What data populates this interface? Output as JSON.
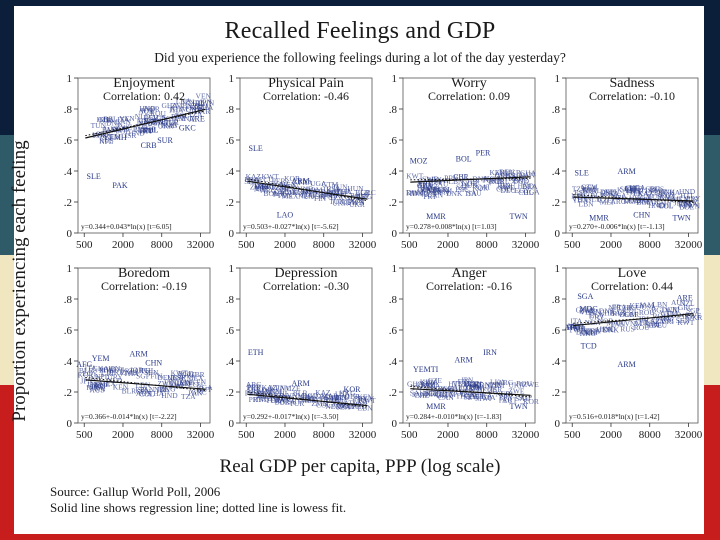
{
  "colors": {
    "stripe_top": "#0b1f3a",
    "stripe_teal": "#2f5a68",
    "stripe_cream": "#f0e6c0",
    "stripe_red": "#c81d1d",
    "text": "#1a1a1a",
    "label_ink": "#2a3a8a"
  },
  "figure": {
    "title": "Recalled Feelings and GDP",
    "subtitle": "Did you experience the following feelings during a lot of the day yesterday?",
    "ylabel": "Proportion experiencing each feeling",
    "xlabel": "Real GDP per capita, PPP (log scale)",
    "source_line1": "Source: Gallup World Poll, 2006",
    "source_line2": "Solid line shows regression line; dotted line is lowess fit."
  },
  "chart_data": [
    {
      "type": "scatter",
      "title": "Enjoyment",
      "correlation": "Correlation: 0.42",
      "x_ticks": [
        "500",
        "2000",
        "8000",
        "32000"
      ],
      "y_ticks": [
        "0",
        ".2",
        ".4",
        ".6",
        ".8",
        "1"
      ],
      "xlim": [
        400,
        45000
      ],
      "ylim": [
        0,
        1
      ],
      "equation": "y=0.344+0.043*ln(x) [t=6.05]",
      "regression": {
        "intercept": 0.344,
        "slope": 0.043
      },
      "labels": [
        {
          "text": "SLE",
          "x": 700,
          "y": 0.35
        },
        {
          "text": "PAK",
          "x": 1800,
          "y": 0.29
        },
        {
          "text": "CRB",
          "x": 5000,
          "y": 0.55
        },
        {
          "text": "YEMH",
          "x": 1500,
          "y": 0.6
        },
        {
          "text": "GKC",
          "x": 20000,
          "y": 0.66
        },
        {
          "text": "SUR",
          "x": 9000,
          "y": 0.58
        },
        {
          "text": "NZL",
          "x": 26000,
          "y": 0.8
        },
        {
          "text": "IRL",
          "x": 30000,
          "y": 0.82
        },
        {
          "text": "ARE",
          "x": 28000,
          "y": 0.72
        },
        {
          "text": "ZAF",
          "x": 7000,
          "y": 0.7
        }
      ],
      "cluster": {
        "x_range": [
          800,
          40000
        ],
        "y_center": 0.72,
        "y_spread": 0.08
      }
    },
    {
      "type": "scatter",
      "title": "Physical Pain",
      "correlation": "Correlation: -0.46",
      "x_ticks": [
        "500",
        "2000",
        "8000",
        "32000"
      ],
      "y_ticks": [
        "0",
        ".2",
        ".4",
        ".6",
        ".8",
        "1"
      ],
      "xlim": [
        400,
        45000
      ],
      "ylim": [
        0,
        1
      ],
      "equation": "y=0.503+-0.027*ln(x) [t=-5.62]",
      "regression": {
        "intercept": 0.503,
        "slope": -0.027
      },
      "labels": [
        {
          "text": "SLE",
          "x": 700,
          "y": 0.53
        },
        {
          "text": "ARM",
          "x": 3500,
          "y": 0.32
        },
        {
          "text": "LAO",
          "x": 2000,
          "y": 0.1
        },
        {
          "text": "TWN",
          "x": 25000,
          "y": 0.18
        }
      ],
      "cluster": {
        "x_range": [
          600,
          40000
        ],
        "y_center": 0.26,
        "y_spread": 0.06
      }
    },
    {
      "type": "scatter",
      "title": "Worry",
      "correlation": "Correlation: 0.09",
      "x_ticks": [
        "500",
        "2000",
        "8000",
        "32000"
      ],
      "y_ticks": [
        "0",
        ".2",
        ".4",
        ".6",
        ".8",
        "1"
      ],
      "xlim": [
        400,
        45000
      ],
      "ylim": [
        0,
        1
      ],
      "equation": "y=0.278+0.008*ln(x) [t=1.03]",
      "regression": {
        "intercept": 0.278,
        "slope": 0.008
      },
      "labels": [
        {
          "text": "MMR",
          "x": 1300,
          "y": 0.09
        },
        {
          "text": "TWN",
          "x": 25000,
          "y": 0.09
        },
        {
          "text": "MOZ",
          "x": 700,
          "y": 0.45
        },
        {
          "text": "BOL",
          "x": 3500,
          "y": 0.46
        },
        {
          "text": "PER",
          "x": 7000,
          "y": 0.5
        }
      ],
      "cluster": {
        "x_range": [
          600,
          40000
        ],
        "y_center": 0.3,
        "y_spread": 0.07
      }
    },
    {
      "type": "scatter",
      "title": "Sadness",
      "correlation": "Correlation: -0.10",
      "x_ticks": [
        "500",
        "2000",
        "8000",
        "32000"
      ],
      "y_ticks": [
        "0",
        ".2",
        ".4",
        ".6",
        ".8",
        "1"
      ],
      "xlim": [
        400,
        45000
      ],
      "ylim": [
        0,
        1
      ],
      "equation": "y=0.270+-0.006*ln(x) [t=-1.13]",
      "regression": {
        "intercept": 0.27,
        "slope": -0.006
      },
      "labels": [
        {
          "text": "SLE",
          "x": 700,
          "y": 0.37
        },
        {
          "text": "ARM",
          "x": 3500,
          "y": 0.38
        },
        {
          "text": "CHN",
          "x": 6000,
          "y": 0.1
        },
        {
          "text": "TWN",
          "x": 25000,
          "y": 0.08
        },
        {
          "text": "MMR",
          "x": 1300,
          "y": 0.08
        }
      ],
      "cluster": {
        "x_range": [
          600,
          40000
        ],
        "y_center": 0.22,
        "y_spread": 0.06
      }
    },
    {
      "type": "scatter",
      "title": "Boredom",
      "correlation": "Correlation: -0.19",
      "x_ticks": [
        "500",
        "2000",
        "8000",
        "32000"
      ],
      "y_ticks": [
        "0",
        ".2",
        ".4",
        ".6",
        ".8",
        "1"
      ],
      "xlim": [
        400,
        45000
      ],
      "ylim": [
        0,
        1
      ],
      "equation": "y=0.366+-0.014*ln(x) [t=-2.22]",
      "regression": {
        "intercept": 0.366,
        "slope": -0.014
      },
      "labels": [
        {
          "text": "YEM",
          "x": 900,
          "y": 0.4
        },
        {
          "text": "ARM",
          "x": 3500,
          "y": 0.43
        },
        {
          "text": "CHN",
          "x": 6000,
          "y": 0.37
        },
        {
          "text": "AFG",
          "x": 500,
          "y": 0.36
        }
      ],
      "cluster": {
        "x_range": [
          500,
          40000
        ],
        "y_center": 0.25,
        "y_spread": 0.08
      }
    },
    {
      "type": "scatter",
      "title": "Depression",
      "correlation": "Correlation: -0.30",
      "x_ticks": [
        "500",
        "2000",
        "8000",
        "32000"
      ],
      "y_ticks": [
        "0",
        ".2",
        ".4",
        ".6",
        ".8",
        "1"
      ],
      "xlim": [
        400,
        45000
      ],
      "ylim": [
        0,
        1
      ],
      "equation": "y=0.292+-0.017*ln(x) [t=-3.50]",
      "regression": {
        "intercept": 0.292,
        "slope": -0.017
      },
      "labels": [
        {
          "text": "ETH",
          "x": 700,
          "y": 0.44
        },
        {
          "text": "ARM",
          "x": 3500,
          "y": 0.24
        },
        {
          "text": "KOR",
          "x": 22000,
          "y": 0.2
        }
      ],
      "cluster": {
        "x_range": [
          600,
          40000
        ],
        "y_center": 0.15,
        "y_spread": 0.05
      }
    },
    {
      "type": "scatter",
      "title": "Anger",
      "correlation": "Correlation: -0.16",
      "x_ticks": [
        "500",
        "2000",
        "8000",
        "32000"
      ],
      "y_ticks": [
        "0",
        ".2",
        ".4",
        ".6",
        ".8",
        "1"
      ],
      "xlim": [
        400,
        45000
      ],
      "ylim": [
        0,
        1
      ],
      "equation": "y=0.284+-0.010*ln(x) [t=-1.83]",
      "regression": {
        "intercept": 0.284,
        "slope": -0.01
      },
      "labels": [
        {
          "text": "IRN",
          "x": 9000,
          "y": 0.44
        },
        {
          "text": "ARM",
          "x": 3500,
          "y": 0.39
        },
        {
          "text": "YEMTI",
          "x": 900,
          "y": 0.33
        },
        {
          "text": "MMR",
          "x": 1300,
          "y": 0.09
        },
        {
          "text": "TWN",
          "x": 25000,
          "y": 0.09
        }
      ],
      "cluster": {
        "x_range": [
          600,
          40000
        ],
        "y_center": 0.2,
        "y_spread": 0.06
      }
    },
    {
      "type": "scatter",
      "title": "Love",
      "correlation": "Correlation: 0.44",
      "x_ticks": [
        "500",
        "2000",
        "8000",
        "32000"
      ],
      "y_ticks": [
        "0",
        ".2",
        ".4",
        ".6",
        ".8",
        "1"
      ],
      "xlim": [
        400,
        45000
      ],
      "ylim": [
        0,
        1
      ],
      "equation": "y=0.516+0.018*ln(x) [t=1.42]",
      "regression": {
        "intercept": 0.516,
        "slope": 0.018
      },
      "labels": [
        {
          "text": "ARM",
          "x": 3500,
          "y": 0.36
        },
        {
          "text": "TCD",
          "x": 900,
          "y": 0.48
        },
        {
          "text": "SGA",
          "x": 800,
          "y": 0.8
        },
        {
          "text": "ARE",
          "x": 28000,
          "y": 0.79
        },
        {
          "text": "MDG",
          "x": 900,
          "y": 0.72
        },
        {
          "text": "AFG",
          "x": 500,
          "y": 0.6
        }
      ],
      "cluster": {
        "x_range": [
          500,
          40000
        ],
        "y_center": 0.67,
        "y_spread": 0.08
      }
    }
  ]
}
